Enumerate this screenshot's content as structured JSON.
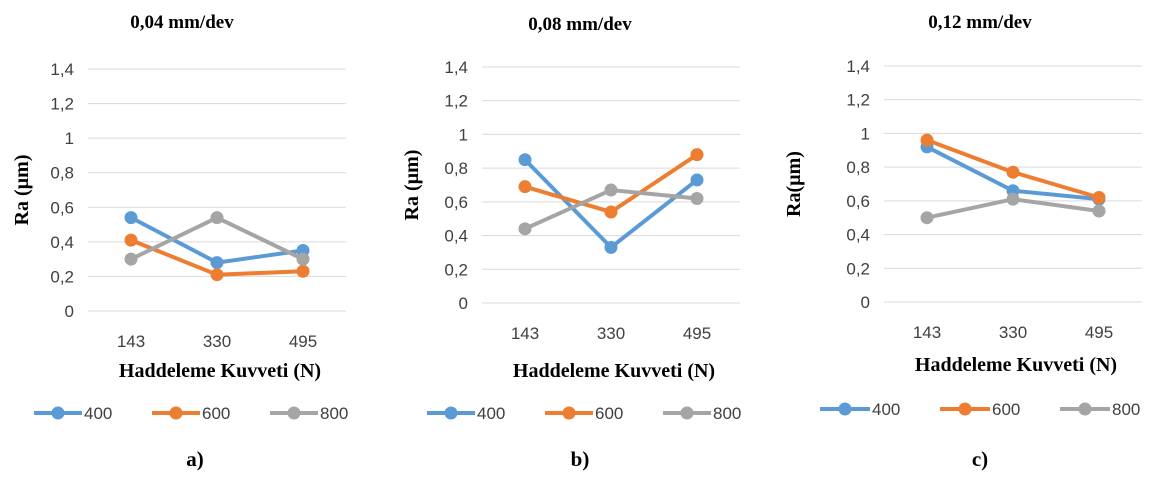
{
  "chart_data": [
    {
      "type": "line",
      "title": "0,04 mm/dev",
      "xlabel": "Haddeleme Kuvveti (N)",
      "ylabel": "Ra (µm)",
      "ylim": [
        0,
        1.4
      ],
      "yticks": [
        "0",
        "0,2",
        "0,4",
        "0,6",
        "0,8",
        "1",
        "1,2",
        "1,4"
      ],
      "categories": [
        "143",
        "330",
        "495"
      ],
      "series": [
        {
          "name": "400",
          "color": "#5b9bd5",
          "values": [
            0.54,
            0.28,
            0.35
          ]
        },
        {
          "name": "600",
          "color": "#ed7d31",
          "values": [
            0.41,
            0.21,
            0.23
          ]
        },
        {
          "name": "800",
          "color": "#a5a5a5",
          "values": [
            0.3,
            0.54,
            0.3
          ]
        }
      ],
      "grid": true,
      "legend": "bottom",
      "caption": "a)"
    },
    {
      "type": "line",
      "title": "0,08 mm/dev",
      "xlabel": "Haddeleme Kuvveti (N)",
      "ylabel": "Ra (µm)",
      "ylim": [
        0,
        1.4
      ],
      "yticks": [
        "0",
        "0,2",
        "0,4",
        "0,6",
        "0,8",
        "1",
        "1,2",
        "1,4"
      ],
      "categories": [
        "143",
        "330",
        "495"
      ],
      "series": [
        {
          "name": "400",
          "color": "#5b9bd5",
          "values": [
            0.85,
            0.33,
            0.73
          ]
        },
        {
          "name": "600",
          "color": "#ed7d31",
          "values": [
            0.69,
            0.54,
            0.88
          ]
        },
        {
          "name": "800",
          "color": "#a5a5a5",
          "values": [
            0.44,
            0.67,
            0.62
          ]
        }
      ],
      "grid": true,
      "legend": "bottom",
      "caption": "b)"
    },
    {
      "type": "line",
      "title": "0,12 mm/dev",
      "xlabel": "Haddeleme Kuvveti (N)",
      "ylabel": "Ra(µm)",
      "ylim": [
        0,
        1.4
      ],
      "yticks": [
        "0",
        "0,2",
        "0,4",
        "0,6",
        "0,8",
        "1",
        "1,2",
        "1,4"
      ],
      "categories": [
        "143",
        "330",
        "495"
      ],
      "series": [
        {
          "name": "400",
          "color": "#5b9bd5",
          "values": [
            0.92,
            0.66,
            0.61
          ]
        },
        {
          "name": "600",
          "color": "#ed7d31",
          "values": [
            0.96,
            0.77,
            0.62
          ]
        },
        {
          "name": "800",
          "color": "#a5a5a5",
          "values": [
            0.5,
            0.61,
            0.54
          ]
        }
      ],
      "grid": true,
      "legend": "bottom",
      "caption": "c)"
    }
  ]
}
